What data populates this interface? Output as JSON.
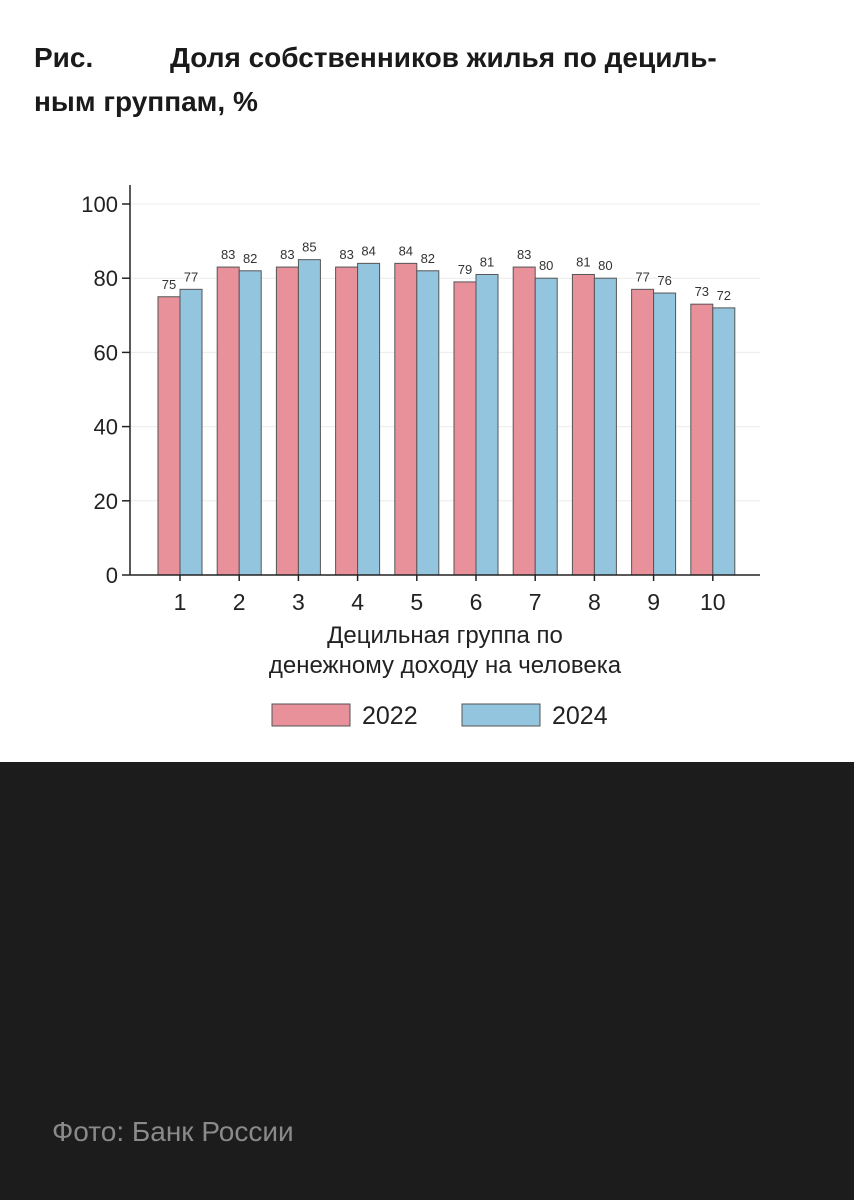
{
  "figure": {
    "label": "Рис.",
    "title_line1": "Доля собственников жилья по дециль-",
    "title_line2": "ным группам, %"
  },
  "chart_data": {
    "type": "bar",
    "categories": [
      "1",
      "2",
      "3",
      "4",
      "5",
      "6",
      "7",
      "8",
      "9",
      "10"
    ],
    "series": [
      {
        "name": "2022",
        "values": [
          75,
          83,
          83,
          83,
          84,
          79,
          83,
          81,
          77,
          73
        ],
        "color": "#e8919b"
      },
      {
        "name": "2024",
        "values": [
          77,
          82,
          85,
          84,
          82,
          81,
          80,
          80,
          76,
          72
        ],
        "color": "#93c5df"
      }
    ],
    "xlabel": "Децильная группа по денежному доходу на человека",
    "xlabel_lines": [
      "Децильная группа по",
      "денежному доходу на человека"
    ],
    "ylabel": "",
    "ylim": [
      0,
      100
    ],
    "yticks": [
      0,
      20,
      40,
      60,
      80,
      100
    ],
    "grid": true,
    "legend_position": "bottom-center",
    "bar_edge_color": "#555555"
  },
  "caption": "Фото: Банк России"
}
